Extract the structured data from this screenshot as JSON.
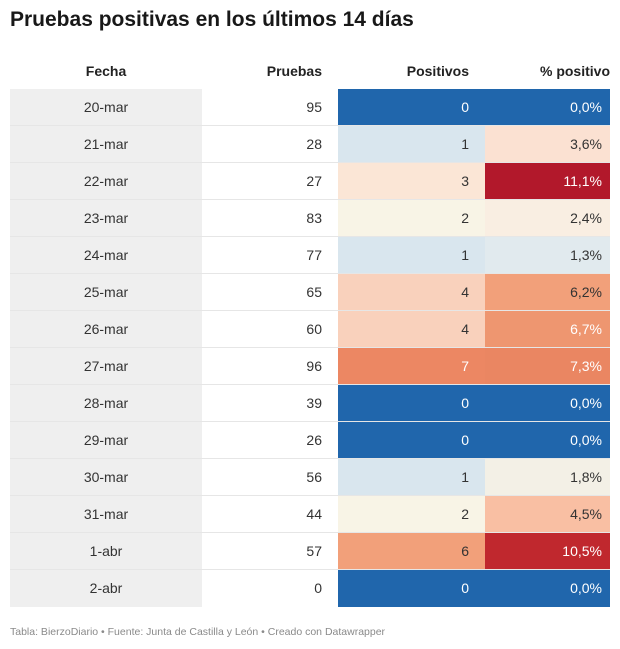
{
  "title": "Pruebas positivas en los últimos 14 días",
  "footer": "Tabla: BierzoDiario • Fuente: Junta de Castilla y León • Creado con Datawrapper",
  "colors": {
    "zero_blue": "#2066ac",
    "light_blue": "#d9e6ee",
    "cream": "#f8f4e6",
    "pale_peach": "#fbe6d6",
    "peach": "#f9d1bc",
    "salmon": "#f2a07a",
    "orange": "#ec8763",
    "red": "#c0282e",
    "dark_red": "#b2182b",
    "light_pct_blue": "#e1eaee",
    "pale_cream_pct": "#f3f0e6"
  },
  "chart_data": {
    "type": "table",
    "title": "Pruebas positivas en los últimos 14 días",
    "columns": [
      "Fecha",
      "Pruebas",
      "Positivos",
      "% positivo"
    ],
    "rows": [
      {
        "fecha": "20-mar",
        "pruebas": "95",
        "positivos": "0",
        "pct": "0,0%",
        "pos_color": "#2066ac",
        "pct_color": "#2066ac",
        "pos_text": "#ffffff",
        "pct_text": "#ffffff"
      },
      {
        "fecha": "21-mar",
        "pruebas": "28",
        "positivos": "1",
        "pct": "3,6%",
        "pos_color": "#d9e6ee",
        "pct_color": "#fbe1d2",
        "pos_text": "#333333",
        "pct_text": "#333333"
      },
      {
        "fecha": "22-mar",
        "pruebas": "27",
        "positivos": "3",
        "pct": "11,1%",
        "pos_color": "#fbe6d6",
        "pct_color": "#b2182b",
        "pos_text": "#333333",
        "pct_text": "#ffffff"
      },
      {
        "fecha": "23-mar",
        "pruebas": "83",
        "positivos": "2",
        "pct": "2,4%",
        "pos_color": "#f8f4e6",
        "pct_color": "#f9eee2",
        "pos_text": "#333333",
        "pct_text": "#333333"
      },
      {
        "fecha": "24-mar",
        "pruebas": "77",
        "positivos": "1",
        "pct": "1,3%",
        "pos_color": "#d9e6ee",
        "pct_color": "#e1eaee",
        "pos_text": "#333333",
        "pct_text": "#333333"
      },
      {
        "fecha": "25-mar",
        "pruebas": "65",
        "positivos": "4",
        "pct": "6,2%",
        "pos_color": "#f9d1bc",
        "pct_color": "#f2a07a",
        "pos_text": "#333333",
        "pct_text": "#333333"
      },
      {
        "fecha": "26-mar",
        "pruebas": "60",
        "positivos": "4",
        "pct": "6,7%",
        "pos_color": "#f9d1bc",
        "pct_color": "#ee9670",
        "pos_text": "#333333",
        "pct_text": "#ffffff"
      },
      {
        "fecha": "27-mar",
        "pruebas": "96",
        "positivos": "7",
        "pct": "7,3%",
        "pos_color": "#ec8763",
        "pct_color": "#ea8662",
        "pos_text": "#ffffff",
        "pct_text": "#ffffff"
      },
      {
        "fecha": "28-mar",
        "pruebas": "39",
        "positivos": "0",
        "pct": "0,0%",
        "pos_color": "#2066ac",
        "pct_color": "#2066ac",
        "pos_text": "#ffffff",
        "pct_text": "#ffffff"
      },
      {
        "fecha": "29-mar",
        "pruebas": "26",
        "positivos": "0",
        "pct": "0,0%",
        "pos_color": "#2066ac",
        "pct_color": "#2066ac",
        "pos_text": "#ffffff",
        "pct_text": "#ffffff"
      },
      {
        "fecha": "30-mar",
        "pruebas": "56",
        "positivos": "1",
        "pct": "1,8%",
        "pos_color": "#d9e6ee",
        "pct_color": "#f3f0e6",
        "pos_text": "#333333",
        "pct_text": "#333333"
      },
      {
        "fecha": "31-mar",
        "pruebas": "44",
        "positivos": "2",
        "pct": "4,5%",
        "pos_color": "#f8f4e6",
        "pct_color": "#f9bfa3",
        "pos_text": "#333333",
        "pct_text": "#333333"
      },
      {
        "fecha": "1-abr",
        "pruebas": "57",
        "positivos": "6",
        "pct": "10,5%",
        "pos_color": "#f2a07a",
        "pct_color": "#c0282e",
        "pos_text": "#333333",
        "pct_text": "#ffffff"
      },
      {
        "fecha": "2-abr",
        "pruebas": "0",
        "positivos": "0",
        "pct": "0,0%",
        "pos_color": "#2066ac",
        "pct_color": "#2066ac",
        "pos_text": "#ffffff",
        "pct_text": "#ffffff"
      }
    ]
  }
}
